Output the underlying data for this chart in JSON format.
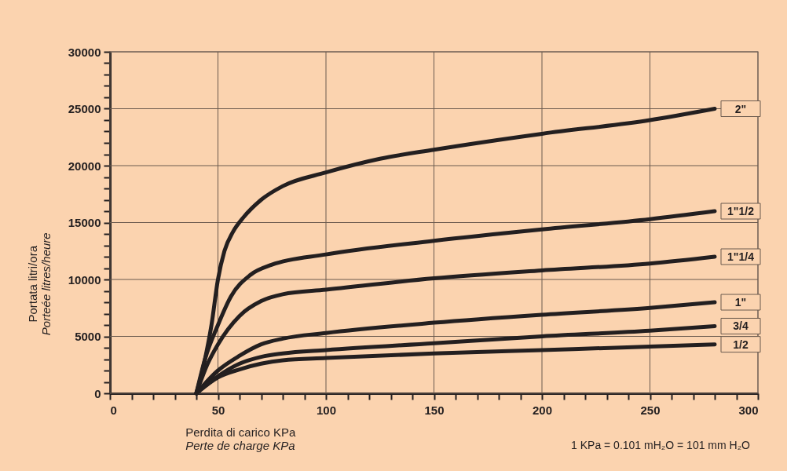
{
  "chart_data": {
    "type": "line",
    "xlabel": "Perdita di carico KPa\nPerte de charge KPa",
    "ylabel": "Portata litri/ora\nPorteée litres/heure",
    "annotations": [
      "1 KPa = 0.101 mH₂O = 101 mm H₂O"
    ],
    "xlim": [
      0,
      300
    ],
    "ylim": [
      0,
      30000
    ],
    "xticks": [
      0,
      {
        "value": 10,
        "label": null
      },
      {
        "value": 20,
        "label": null
      },
      {
        "value": 30,
        "label": null
      },
      {
        "value": 40,
        "label": null
      },
      50,
      {
        "value": 60,
        "label": null
      },
      {
        "value": 70,
        "label": null
      },
      {
        "value": 80,
        "label": null
      },
      {
        "value": 90,
        "label": null
      },
      100,
      {
        "value": 110,
        "label": null
      },
      {
        "value": 120,
        "label": null
      },
      {
        "value": 130,
        "label": null
      },
      {
        "value": 140,
        "label": null
      },
      150,
      {
        "value": 160,
        "label": null
      },
      {
        "value": 170,
        "label": null
      },
      {
        "value": 180,
        "label": null
      },
      {
        "value": 190,
        "label": null
      },
      200,
      {
        "value": 210,
        "label": null
      },
      {
        "value": 220,
        "label": null
      },
      {
        "value": 230,
        "label": null
      },
      {
        "value": 240,
        "label": null
      },
      250,
      {
        "value": 260,
        "label": null
      },
      {
        "value": 270,
        "label": null
      },
      {
        "value": 280,
        "label": null
      },
      {
        "value": 290,
        "label": null
      },
      300
    ],
    "yticks": [
      0,
      {
        "value": 1000,
        "label": null
      },
      {
        "value": 2000,
        "label": null
      },
      {
        "value": 3000,
        "label": null
      },
      {
        "value": 4000,
        "label": null
      },
      5000,
      {
        "value": 6000,
        "label": null
      },
      {
        "value": 7000,
        "label": null
      },
      {
        "value": 8000,
        "label": null
      },
      {
        "value": 9000,
        "label": null
      },
      10000,
      {
        "value": 11000,
        "label": null
      },
      {
        "value": 12000,
        "label": null
      },
      {
        "value": 13000,
        "label": null
      },
      {
        "value": 14000,
        "label": null
      },
      15000,
      {
        "value": 16000,
        "label": null
      },
      {
        "value": 17000,
        "label": null
      },
      {
        "value": 18000,
        "label": null
      },
      {
        "value": 19000,
        "label": null
      },
      20000,
      {
        "value": 21000,
        "label": null
      },
      {
        "value": 22000,
        "label": null
      },
      {
        "value": 23000,
        "label": null
      },
      {
        "value": 24000,
        "label": null
      },
      25000,
      {
        "value": 26000,
        "label": null
      },
      {
        "value": 27000,
        "label": null
      },
      {
        "value": 28000,
        "label": null
      },
      {
        "value": 29000,
        "label": null
      },
      30000
    ],
    "grid": true,
    "legend": false,
    "marker": "none",
    "line_style": "solid",
    "series": [
      {
        "name": "2\"",
        "color": "#231f20",
        "x": [
          40,
          44,
          47,
          50,
          53,
          57,
          62,
          70,
          80,
          100,
          125,
          150,
          200,
          250,
          280
        ],
        "values": [
          0,
          3000,
          6000,
          10000,
          12500,
          14200,
          15500,
          17000,
          18200,
          19400,
          20600,
          21400,
          22800,
          24000,
          25000
        ]
      },
      {
        "name": "1\"1/2",
        "color": "#231f20",
        "x": [
          40,
          44,
          50,
          56,
          65,
          75,
          100,
          150,
          200,
          250,
          280
        ],
        "values": [
          0,
          3000,
          6000,
          8500,
          10400,
          11300,
          12200,
          13400,
          14400,
          15300,
          16000
        ]
      },
      {
        "name": "1\"1/4",
        "color": "#231f20",
        "x": [
          40,
          45,
          50,
          60,
          70,
          80,
          100,
          150,
          200,
          250,
          280
        ],
        "values": [
          0,
          2500,
          4300,
          6800,
          8100,
          8700,
          9100,
          10100,
          10800,
          11400,
          12000
        ]
      },
      {
        "name": "1\"",
        "color": "#231f20",
        "x": [
          40,
          50,
          60,
          70,
          80,
          100,
          150,
          200,
          250,
          280
        ],
        "values": [
          0,
          2000,
          3300,
          4300,
          4800,
          5300,
          6200,
          6900,
          7500,
          8000
        ]
      },
      {
        "name": "3/4",
        "color": "#231f20",
        "x": [
          40,
          50,
          60,
          70,
          80,
          100,
          150,
          200,
          250,
          280
        ],
        "values": [
          0,
          1500,
          2600,
          3200,
          3500,
          3800,
          4400,
          5000,
          5500,
          5900
        ]
      },
      {
        "name": "1/2",
        "color": "#231f20",
        "x": [
          40,
          50,
          60,
          70,
          80,
          100,
          150,
          200,
          250,
          280
        ],
        "values": [
          0,
          1400,
          2100,
          2600,
          2900,
          3100,
          3500,
          3800,
          4100,
          4300
        ]
      }
    ]
  }
}
